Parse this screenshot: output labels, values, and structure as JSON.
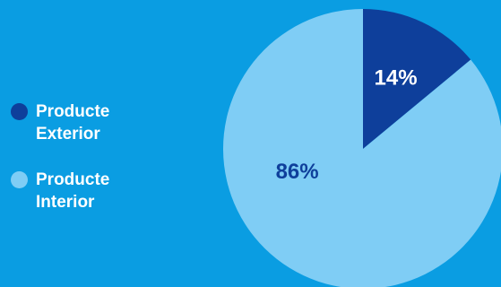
{
  "chart_data": {
    "type": "pie",
    "title": "",
    "slices": [
      {
        "label_line1": "Producte",
        "label_line2": "Exterior",
        "value": 14,
        "value_label": "14%",
        "color": "#0e3f9b",
        "text_color": "#ffffff"
      },
      {
        "label_line1": "Producte",
        "label_line2": "Interior",
        "value": 86,
        "value_label": "86%",
        "color": "#7fcdf5",
        "text_color": "#0e3f9b"
      }
    ],
    "legend_position": "left"
  },
  "colors": {
    "background": "#0a9de2"
  }
}
